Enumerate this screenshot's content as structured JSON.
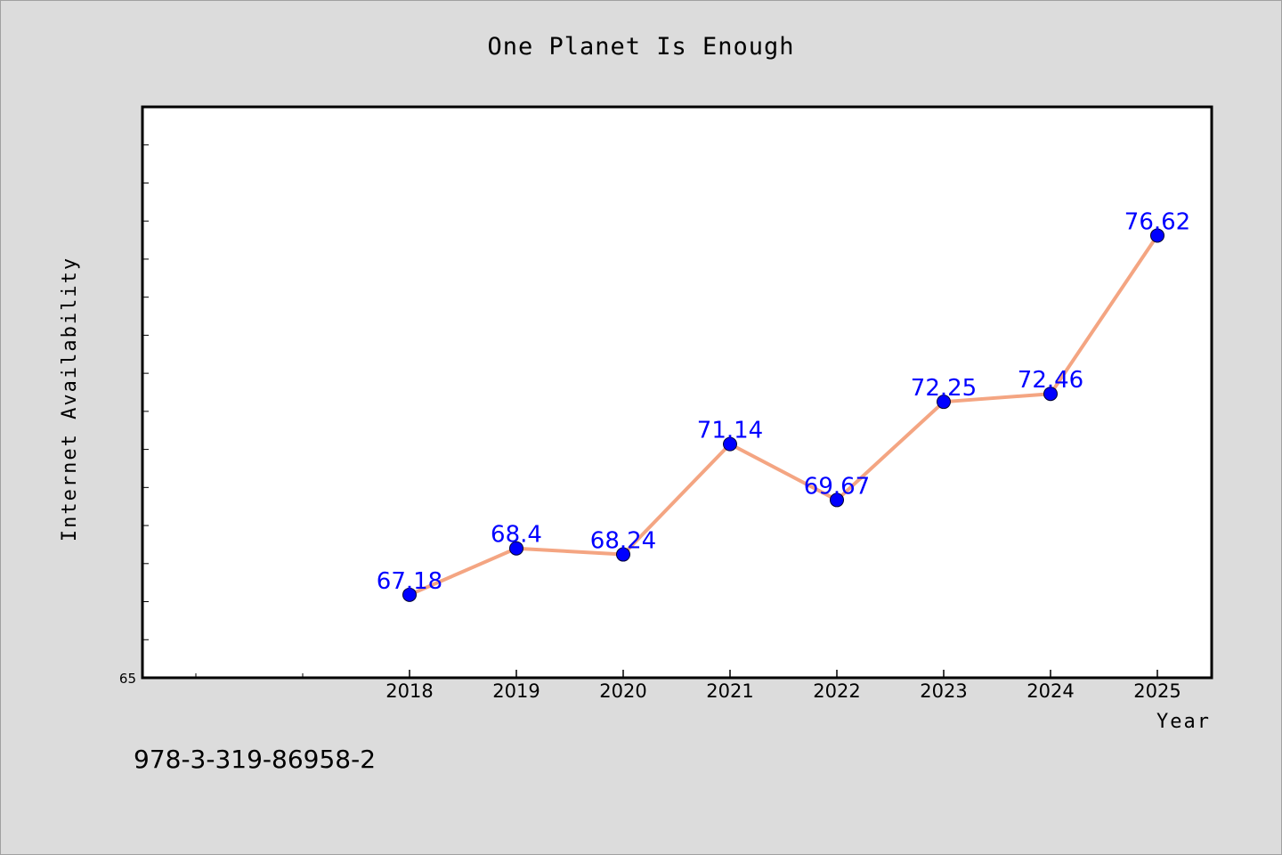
{
  "chart_data": {
    "type": "line",
    "title": "One Planet Is Enough",
    "xlabel": "Year",
    "ylabel": "Internet Availability",
    "x": [
      "2018",
      "2019",
      "2020",
      "2021",
      "2022",
      "2023",
      "2024",
      "2025"
    ],
    "series": [
      {
        "values": [
          67.18,
          68.4,
          68.24,
          71.14,
          69.67,
          72.25,
          72.46,
          76.62
        ],
        "labels": [
          "67.18",
          "68.4",
          "68.24",
          "71.14",
          "69.67",
          "72.25",
          "72.46",
          "76.62"
        ],
        "line_color": "#f4a582",
        "marker_color": "#0000ff"
      }
    ],
    "ylim": [
      65,
      80
    ],
    "y_tick_labels": [
      "65"
    ],
    "grid": false
  },
  "footer_text": "978-3-319-86958-2",
  "colors": {
    "background": "#dcdcdc",
    "plot_background": "#ffffff",
    "line": "#f4a582",
    "marker": "#0000ff",
    "data_label": "#0000ff"
  }
}
